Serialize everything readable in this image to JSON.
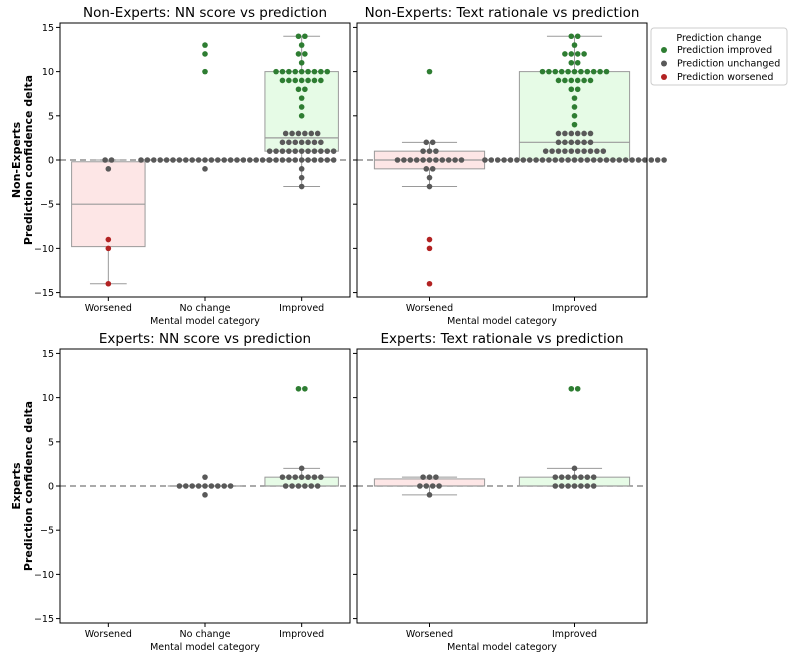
{
  "legend": {
    "title": "Prediction change",
    "items": [
      {
        "label": "Prediction improved",
        "color": "#2e7d32"
      },
      {
        "label": "Prediction unchanged",
        "color": "#595959"
      },
      {
        "label": "Prediction worsened",
        "color": "#b22222"
      }
    ]
  },
  "colors": {
    "worsened_box": "#fde6e6",
    "improved_box": "#e6fbe6",
    "box_edge": "#9a9a9a",
    "dash": "#777777"
  },
  "chart_data": [
    {
      "type": "box+swarm",
      "title": "Non-Experts: NN score vs prediction",
      "xlabel": "Mental model category",
      "ylabel_line1": "Non-Experts",
      "ylabel_line2": "Prediction confidence delta",
      "ylim": [
        -15.5,
        15.5
      ],
      "yticks": [
        -15,
        -10,
        -5,
        0,
        5,
        10,
        15
      ],
      "categories": [
        "Worsened",
        "No change",
        "Improved"
      ],
      "boxes": [
        {
          "category": "Worsened",
          "q1": -9.8,
          "median": -5,
          "q3": -0.2,
          "whisker_low": -14,
          "whisker_high": 0,
          "fill": "worsened"
        },
        {
          "category": "No change",
          "q1": 0,
          "median": 0,
          "q3": 0,
          "whisker_low": 0,
          "whisker_high": 0,
          "fill": "none"
        },
        {
          "category": "Improved",
          "q1": 1,
          "median": 2.5,
          "q3": 10,
          "whisker_low": -3,
          "whisker_high": 14,
          "fill": "improved"
        }
      ],
      "points": [
        {
          "category": "Worsened",
          "unchanged": [
            0,
            0,
            -1
          ],
          "worsened": [
            -9,
            -10,
            -14
          ],
          "improved": []
        },
        {
          "category": "No change",
          "unchanged": [
            0,
            0,
            0,
            0,
            0,
            0,
            0,
            0,
            0,
            0,
            0,
            0,
            0,
            0,
            0,
            0,
            0,
            0,
            0,
            0,
            0,
            -1
          ],
          "worsened": [],
          "improved": [
            13,
            12,
            10
          ]
        },
        {
          "category": "Improved",
          "unchanged": [
            3,
            3,
            3,
            3,
            3,
            3,
            2,
            2,
            2,
            2,
            2,
            2,
            2,
            1,
            1,
            1,
            1,
            1,
            1,
            1,
            1,
            1,
            1,
            1,
            0,
            0,
            0,
            0,
            0,
            0,
            0,
            0,
            0,
            0,
            0,
            -1,
            -2,
            -3
          ],
          "worsened": [],
          "improved": [
            14,
            14,
            13,
            12,
            12,
            11,
            10,
            10,
            10,
            10,
            10,
            10,
            10,
            10,
            10,
            9,
            9,
            9,
            9,
            9,
            9,
            9,
            8,
            8,
            7,
            6,
            5
          ]
        }
      ]
    },
    {
      "type": "box+swarm",
      "title": "Non-Experts: Text rationale vs prediction",
      "xlabel": "Mental model category",
      "ylim": [
        -15.5,
        15.5
      ],
      "yticks": [
        -15,
        -10,
        -5,
        0,
        5,
        10,
        15
      ],
      "categories": [
        "Worsened",
        "Improved"
      ],
      "boxes": [
        {
          "category": "Worsened",
          "q1": -1,
          "median": 0,
          "q3": 1,
          "whisker_low": -3,
          "whisker_high": 2,
          "fill": "worsened"
        },
        {
          "category": "Improved",
          "q1": 0,
          "median": 2,
          "q3": 10,
          "whisker_low": 0,
          "whisker_high": 14,
          "fill": "improved"
        }
      ],
      "points": [
        {
          "category": "Worsened",
          "unchanged": [
            2,
            2,
            1,
            1,
            1,
            0,
            0,
            0,
            0,
            0,
            0,
            0,
            0,
            0,
            0,
            0,
            -1,
            -1,
            -2,
            -3
          ],
          "worsened": [
            -9,
            -10,
            -14
          ],
          "improved": [
            10
          ]
        },
        {
          "category": "Improved",
          "unchanged": [
            3,
            3,
            3,
            3,
            3,
            3,
            2,
            2,
            2,
            2,
            2,
            2,
            1,
            1,
            1,
            1,
            1,
            1,
            1,
            1,
            1,
            1,
            0,
            0,
            0,
            0,
            0,
            0,
            0,
            0,
            0,
            0,
            0,
            0,
            0,
            0,
            0,
            0,
            0,
            0,
            0,
            0,
            0,
            0,
            0,
            0,
            0,
            0,
            0,
            0,
            0
          ],
          "worsened": [],
          "improved": [
            14,
            14,
            13,
            12,
            12,
            12,
            12,
            11,
            11,
            10,
            10,
            10,
            10,
            10,
            10,
            10,
            10,
            10,
            10,
            10,
            9,
            9,
            9,
            9,
            9,
            9,
            8,
            8,
            7,
            6,
            5,
            4
          ]
        }
      ]
    },
    {
      "type": "box+swarm",
      "title": "Experts: NN score vs prediction",
      "xlabel": "Mental model category",
      "ylabel_line1": "Experts",
      "ylabel_line2": "Prediction confidence delta",
      "ylim": [
        -15.5,
        15.5
      ],
      "yticks": [
        -15,
        -10,
        -5,
        0,
        5,
        10,
        15
      ],
      "categories": [
        "Worsened",
        "No change",
        "Improved"
      ],
      "boxes": [
        {
          "category": "No change",
          "q1": 0,
          "median": 0,
          "q3": 0,
          "whisker_low": 0,
          "whisker_high": 0,
          "fill": "none"
        },
        {
          "category": "Improved",
          "q1": 0,
          "median": 0,
          "q3": 1,
          "whisker_low": 0,
          "whisker_high": 2,
          "fill": "improved"
        }
      ],
      "points": [
        {
          "category": "Worsened",
          "unchanged": [],
          "worsened": [],
          "improved": []
        },
        {
          "category": "No change",
          "unchanged": [
            1,
            0,
            0,
            0,
            0,
            0,
            0,
            0,
            0,
            0,
            -1
          ],
          "worsened": [],
          "improved": []
        },
        {
          "category": "Improved",
          "unchanged": [
            2,
            1,
            1,
            1,
            1,
            1,
            1,
            1,
            0,
            0,
            0,
            0,
            0,
            0
          ],
          "worsened": [],
          "improved": [
            11,
            11
          ]
        }
      ]
    },
    {
      "type": "box+swarm",
      "title": "Experts: Text rationale vs prediction",
      "xlabel": "Mental model category",
      "ylim": [
        -15.5,
        15.5
      ],
      "yticks": [
        -15,
        -10,
        -5,
        0,
        5,
        10,
        15
      ],
      "categories": [
        "Worsened",
        "Improved"
      ],
      "boxes": [
        {
          "category": "Worsened",
          "q1": 0,
          "median": 0,
          "q3": 0.8,
          "whisker_low": -1,
          "whisker_high": 1,
          "fill": "worsened"
        },
        {
          "category": "Improved",
          "q1": 0,
          "median": 0,
          "q3": 1,
          "whisker_low": 0,
          "whisker_high": 2,
          "fill": "improved"
        }
      ],
      "points": [
        {
          "category": "Worsened",
          "unchanged": [
            1,
            1,
            1,
            0,
            0,
            0,
            0,
            -1
          ],
          "worsened": [],
          "improved": []
        },
        {
          "category": "Improved",
          "unchanged": [
            2,
            1,
            1,
            1,
            1,
            1,
            1,
            1,
            0,
            0,
            0,
            0,
            0,
            0,
            0
          ],
          "worsened": [],
          "improved": [
            11,
            11
          ]
        }
      ]
    }
  ]
}
